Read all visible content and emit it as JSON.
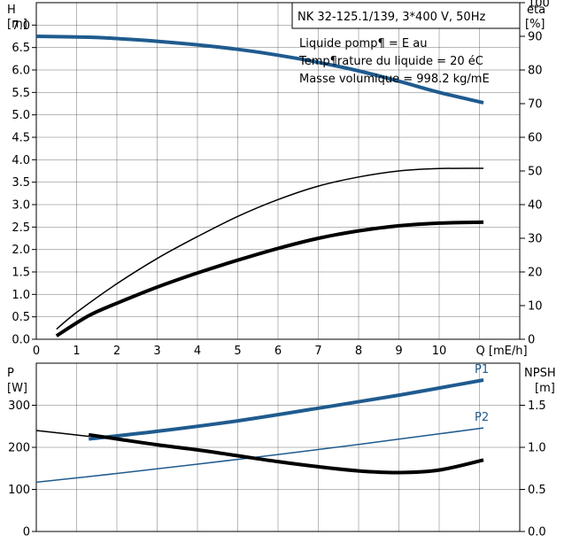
{
  "info": {
    "title": "NK 32-125.1/139, 3*400 V, 50Hz",
    "line1": "Liquide pomp¶ = E au",
    "line2": "Temp¶rature du liquide = 20 éC",
    "line3": "Masse volumique = 998.2 kg/mE"
  },
  "colors": {
    "blue": "#1f5b8f",
    "black": "#000000"
  },
  "chart_data": [
    {
      "type": "line",
      "x_label": "Q [mE/h]",
      "x_ticks": [
        "0",
        "1",
        "2",
        "3",
        "4",
        "5",
        "6",
        "7",
        "8",
        "9",
        "10",
        "Q [mE/h]"
      ],
      "left_axis": {
        "label_line1": "H",
        "label_line2": "[m]",
        "ticks": [
          "0.0",
          "0.5",
          "1.0",
          "1.5",
          "2.0",
          "2.5",
          "3.0",
          "3.5",
          "4.0",
          "4.5",
          "5.0",
          "5.5",
          "6.0",
          "6.5",
          "7.0"
        ],
        "ylim": [
          0,
          7.5
        ]
      },
      "right_axis": {
        "label_line1": "eta",
        "label_line2": "[%]",
        "ticks": [
          "0",
          "10",
          "20",
          "30",
          "40",
          "50",
          "60",
          "70",
          "80",
          "90",
          "100"
        ],
        "ylim": [
          0,
          100
        ]
      },
      "xlim": [
        0,
        12
      ],
      "grid": true,
      "series": [
        {
          "axis": "left",
          "color": "blue",
          "width": 4,
          "points": [
            [
              0,
              6.75
            ],
            [
              1.3,
              6.73
            ],
            [
              2,
              6.7
            ],
            [
              3,
              6.64
            ],
            [
              4,
              6.56
            ],
            [
              5,
              6.46
            ],
            [
              6,
              6.33
            ],
            [
              7,
              6.17
            ],
            [
              8,
              5.98
            ],
            [
              9,
              5.75
            ],
            [
              10,
              5.5
            ],
            [
              11.1,
              5.27
            ]
          ]
        },
        {
          "axis": "right",
          "color": "black",
          "width": 1.5,
          "points": [
            [
              0.5,
              3
            ],
            [
              1,
              8
            ],
            [
              2,
              16.5
            ],
            [
              3,
              24
            ],
            [
              4,
              30.5
            ],
            [
              5,
              36.5
            ],
            [
              6,
              41.5
            ],
            [
              7,
              45.5
            ],
            [
              8,
              48.2
            ],
            [
              9,
              50
            ],
            [
              10,
              50.7
            ],
            [
              11.1,
              50.8
            ]
          ]
        },
        {
          "axis": "right",
          "color": "black",
          "width": 4,
          "points": [
            [
              0.5,
              1
            ],
            [
              1.3,
              7
            ],
            [
              2,
              10.7
            ],
            [
              3,
              15.5
            ],
            [
              4,
              19.7
            ],
            [
              5,
              23.5
            ],
            [
              6,
              27
            ],
            [
              7,
              30
            ],
            [
              8,
              32.2
            ],
            [
              9,
              33.7
            ],
            [
              10,
              34.5
            ],
            [
              11.1,
              34.8
            ]
          ]
        }
      ]
    },
    {
      "type": "line",
      "x_label": "Q [mE/h]",
      "xlim": [
        0,
        12
      ],
      "left_axis": {
        "label_line1": "P",
        "label_line2": "[W]",
        "ticks": [
          "0",
          "100",
          "200",
          "300"
        ],
        "ylim": [
          0,
          400
        ]
      },
      "right_axis": {
        "label_line1": "NPSH",
        "label_line2": "[m]",
        "ticks": [
          "0.0",
          "0.5",
          "1.0",
          "1.5"
        ],
        "ylim": [
          0,
          2
        ]
      },
      "grid": true,
      "series": [
        {
          "name": "P1",
          "axis": "left",
          "color": "blue",
          "width": 4,
          "points": [
            [
              1.3,
              220
            ],
            [
              3,
              238
            ],
            [
              5,
              263
            ],
            [
              7,
              293
            ],
            [
              9,
              324
            ],
            [
              11.1,
              360
            ]
          ]
        },
        {
          "name": "P2",
          "axis": "left",
          "color": "blue",
          "width": 1.5,
          "points": [
            [
              0,
              117
            ],
            [
              2,
              138
            ],
            [
              4,
              160
            ],
            [
              6,
              183
            ],
            [
              8,
              207
            ],
            [
              10,
              232
            ],
            [
              11.1,
              246
            ]
          ]
        },
        {
          "axis": "right",
          "color": "black",
          "width": 1.5,
          "points": [
            [
              0,
              1.2
            ],
            [
              1.3,
              1.13
            ]
          ]
        },
        {
          "axis": "right",
          "color": "black",
          "width": 4,
          "points": [
            [
              1.3,
              1.15
            ],
            [
              2,
              1.1
            ],
            [
              3,
              1.03
            ],
            [
              4,
              0.97
            ],
            [
              5,
              0.9
            ],
            [
              6,
              0.83
            ],
            [
              7,
              0.77
            ],
            [
              8,
              0.72
            ],
            [
              9,
              0.7
            ],
            [
              10,
              0.73
            ],
            [
              11.1,
              0.85
            ]
          ]
        }
      ]
    }
  ]
}
